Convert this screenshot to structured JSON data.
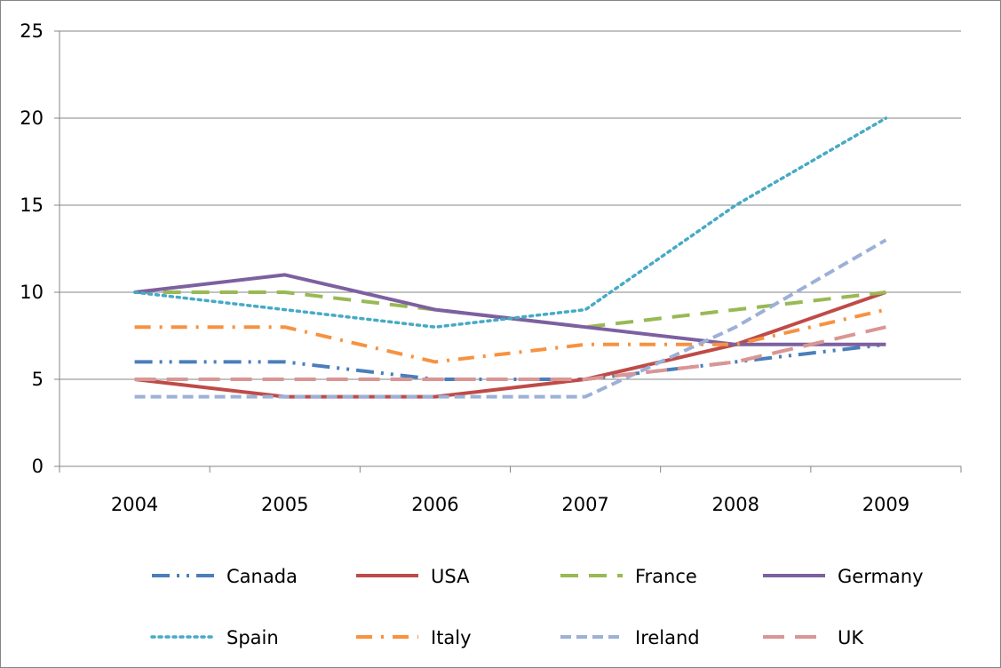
{
  "chart_data": {
    "type": "line",
    "title": "",
    "xlabel": "",
    "ylabel": "",
    "categories": [
      "2004",
      "2005",
      "2006",
      "2007",
      "2008",
      "2009"
    ],
    "ylim": [
      0,
      25
    ],
    "yticks": [
      0,
      5,
      10,
      15,
      20,
      25
    ],
    "grid": true,
    "legend_position": "bottom",
    "series": [
      {
        "name": "Canada",
        "values": [
          6,
          6,
          5,
          5,
          6,
          7
        ],
        "color": "#4a7ebb",
        "dash": "long-dash-dot-dot"
      },
      {
        "name": "USA",
        "values": [
          5,
          4,
          4,
          5,
          7,
          10
        ],
        "color": "#be4b48",
        "dash": "solid"
      },
      {
        "name": "France",
        "values": [
          10,
          10,
          9,
          8,
          9,
          10
        ],
        "color": "#98b954",
        "dash": "dash"
      },
      {
        "name": "Germany",
        "values": [
          10,
          11,
          9,
          8,
          7,
          7
        ],
        "color": "#7d60a0",
        "dash": "solid"
      },
      {
        "name": "Spain",
        "values": [
          10,
          9,
          8,
          9,
          15,
          20
        ],
        "color": "#46aac5",
        "dash": "dot"
      },
      {
        "name": "Italy",
        "values": [
          8,
          8,
          6,
          7,
          7,
          9
        ],
        "color": "#f69240",
        "dash": "dash-dot"
      },
      {
        "name": "Ireland",
        "values": [
          4,
          4,
          4,
          4,
          8,
          13
        ],
        "color": "#9cb0d8",
        "dash": "short-dash"
      },
      {
        "name": "UK",
        "values": [
          5,
          5,
          5,
          5,
          6,
          8
        ],
        "color": "#d99694",
        "dash": "long-dash"
      }
    ]
  }
}
